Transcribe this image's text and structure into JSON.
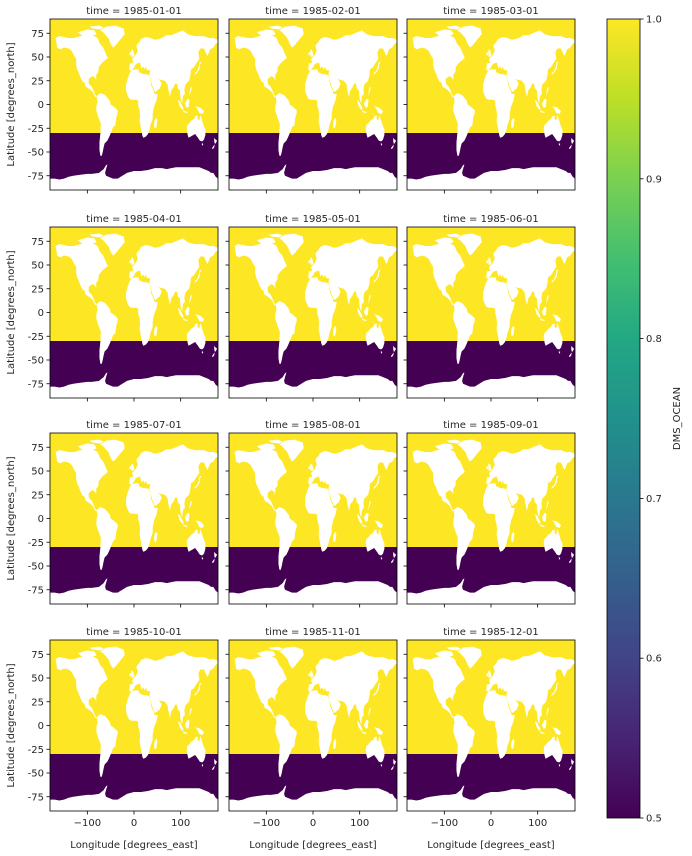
{
  "chart_data": {
    "type": "heatmap",
    "layout": {
      "rows": 4,
      "cols": 3
    },
    "variable": "DMS_OCEAN",
    "xlabel": "Longitude [degrees_east]",
    "ylabel": "Latitude [degrees_north]",
    "xlim": [
      -180,
      180
    ],
    "ylim": [
      -90,
      90
    ],
    "xticks": [
      -100,
      0,
      100
    ],
    "yticks": [
      75,
      50,
      25,
      0,
      -25,
      -50,
      -75
    ],
    "panels": [
      {
        "title": "time = 1985-01-01"
      },
      {
        "title": "time = 1985-02-01"
      },
      {
        "title": "time = 1985-03-01"
      },
      {
        "title": "time = 1985-04-01"
      },
      {
        "title": "time = 1985-05-01"
      },
      {
        "title": "time = 1985-06-01"
      },
      {
        "title": "time = 1985-07-01"
      },
      {
        "title": "time = 1985-08-01"
      },
      {
        "title": "time = 1985-09-01"
      },
      {
        "title": "time = 1985-10-01"
      },
      {
        "title": "time = 1985-11-01"
      },
      {
        "title": "time = 1985-12-01"
      }
    ],
    "regions": [
      {
        "lat_range": [
          -30,
          90
        ],
        "value": 1.0
      },
      {
        "lat_range": [
          -90,
          -30
        ],
        "value": 0.5
      }
    ],
    "colorbar": {
      "label": "DMS_OCEAN",
      "range": [
        0.5,
        1.0
      ],
      "ticks": [
        0.5,
        0.6,
        0.7,
        0.8,
        0.9,
        1.0
      ],
      "colormap": "viridis"
    },
    "colors": {
      "high": "#fde725",
      "low": "#440154",
      "land": "#ffffff"
    }
  }
}
